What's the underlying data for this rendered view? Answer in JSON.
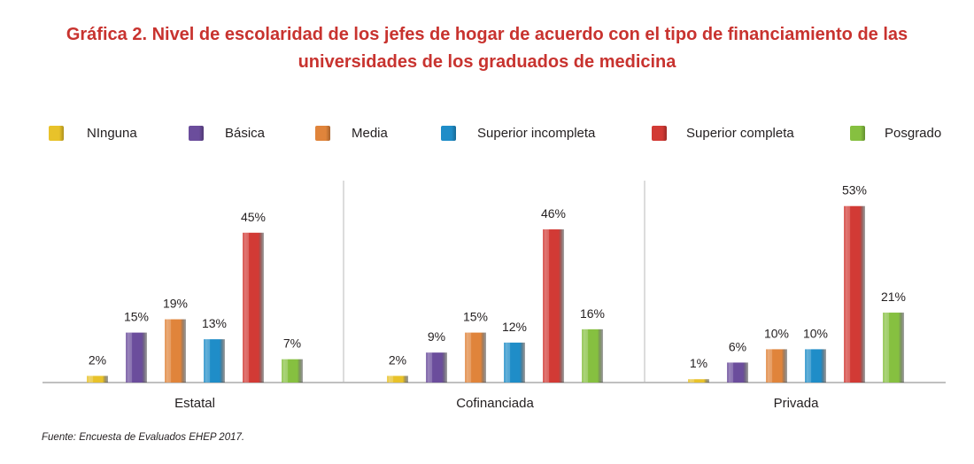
{
  "title_lines": [
    "Gráfica 2. Nivel de escolaridad de los jefes de hogar de acuerdo con el tipo de financiamiento de las",
    "universidades de los graduados de medicina"
  ],
  "source": "Fuente: Encuesta de Evaluados EHEP 2017.",
  "chart_data": {
    "type": "bar",
    "categories": [
      "Estatal",
      "Cofinanciada",
      "Privada"
    ],
    "series": [
      {
        "name": "NInguna",
        "values": [
          2,
          2,
          1
        ],
        "labels": [
          "2%",
          "2%",
          "1%"
        ],
        "color": "#e8c22a"
      },
      {
        "name": "Básica",
        "values": [
          15,
          9,
          6
        ],
        "labels": [
          "15%",
          "9%",
          "6%"
        ],
        "color": "#6b4d9c"
      },
      {
        "name": "Media",
        "values": [
          19,
          15,
          10
        ],
        "labels": [
          "19%",
          "15%",
          "10%"
        ],
        "color": "#e0843b"
      },
      {
        "name": "Superior incompleta",
        "values": [
          13,
          12,
          10
        ],
        "labels": [
          "13%",
          "12%",
          "10%"
        ],
        "color": "#1f8dc8"
      },
      {
        "name": "Superior completa",
        "values": [
          45,
          46,
          53
        ],
        "labels": [
          "45%",
          "46%",
          "53%"
        ],
        "color": "#d23a35"
      },
      {
        "name": "Posgrado",
        "values": [
          7,
          16,
          21
        ],
        "labels": [
          "7%",
          "16%",
          "21%"
        ],
        "color": "#86c040"
      }
    ],
    "ylim": [
      0,
      60
    ],
    "legend_position": "top",
    "grid": false
  }
}
